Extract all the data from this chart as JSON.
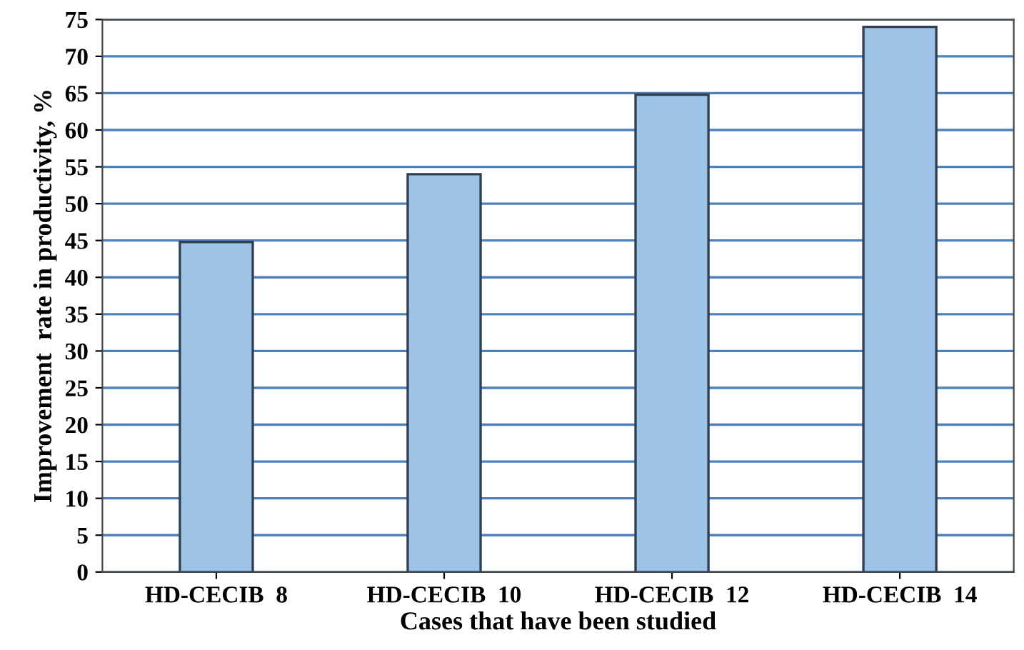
{
  "chart_data": {
    "type": "bar",
    "xlabel": "Cases that have been studied",
    "ylabel": "Improvement  rate in productivity, %",
    "categories": [
      "HD-CECIB  8",
      "HD-CECIB  10",
      "HD-CECIB  12",
      "HD-CECIB  14"
    ],
    "values": [
      44.8,
      54,
      64.8,
      74
    ],
    "color": "#9dc3e6",
    "ylim": [
      0,
      75
    ],
    "yticks": [
      0,
      5,
      10,
      15,
      20,
      25,
      30,
      35,
      40,
      45,
      50,
      55,
      60,
      65,
      70,
      75
    ],
    "grid": "y"
  }
}
